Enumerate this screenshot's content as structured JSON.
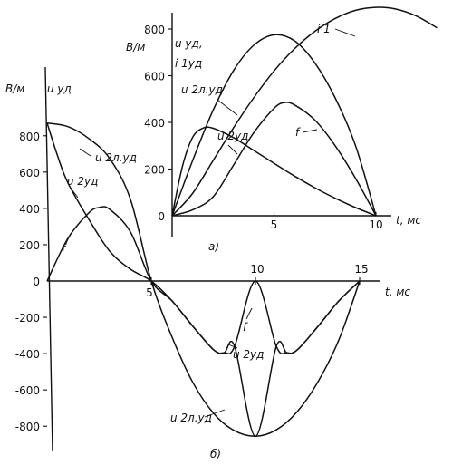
{
  "chart_data": [
    {
      "panel_label": "а)",
      "type": "line",
      "y_unit": "В/м",
      "y_label_lines": [
        "u уд,",
        "i 1уд"
      ],
      "x_label": "t, мс",
      "x_ticks": [
        "5",
        "10"
      ],
      "y_ticks": [
        "0",
        "200",
        "400",
        "600",
        "800"
      ],
      "xlim": [
        0,
        13
      ],
      "ylim": [
        0,
        900
      ],
      "series": [
        {
          "name": "i 1",
          "points": [
            [
              0,
              0
            ],
            [
              1,
              95
            ],
            [
              2,
              235
            ],
            [
              3,
              375
            ],
            [
              4,
              505
            ],
            [
              5,
              620
            ],
            [
              6,
              715
            ],
            [
              7,
              790
            ],
            [
              8,
              845
            ],
            [
              9,
              880
            ],
            [
              10,
              893
            ],
            [
              11,
              885
            ],
            [
              12,
              855
            ],
            [
              13,
              805
            ]
          ]
        },
        {
          "name": "u 2л.уд",
          "points": [
            [
              0,
              0
            ],
            [
              1,
              235
            ],
            [
              2,
              450
            ],
            [
              3,
              620
            ],
            [
              4,
              730
            ],
            [
              5,
              775
            ],
            [
              6,
              750
            ],
            [
              7,
              655
            ],
            [
              8,
              505
            ],
            [
              9,
              300
            ],
            [
              10,
              0
            ]
          ]
        },
        {
          "name": "u 2уд",
          "points": [
            [
              0,
              0
            ],
            [
              0.5,
              210
            ],
            [
              1,
              335
            ],
            [
              1.5,
              375
            ],
            [
              2,
              375
            ],
            [
              3,
              335
            ],
            [
              4,
              280
            ],
            [
              5,
              225
            ],
            [
              6,
              170
            ],
            [
              7,
              120
            ],
            [
              8,
              75
            ],
            [
              9,
              35
            ],
            [
              10,
              0
            ]
          ]
        },
        {
          "name": "f",
          "points": [
            [
              0,
              0
            ],
            [
              1,
              25
            ],
            [
              2,
              80
            ],
            [
              3,
              215
            ],
            [
              4,
              355
            ],
            [
              5,
              460
            ],
            [
              5.5,
              485
            ],
            [
              6,
              475
            ],
            [
              7,
              410
            ],
            [
              8,
              300
            ],
            [
              9,
              160
            ],
            [
              10,
              0
            ]
          ]
        }
      ]
    },
    {
      "panel_label": "б)",
      "type": "line",
      "y_unit": "В/м",
      "y_label_lines": [
        "u уд"
      ],
      "x_label": "t, мс",
      "x_ticks": [
        "5",
        "10",
        "15"
      ],
      "y_ticks": [
        "800",
        "600",
        "400",
        "200",
        "0",
        "-200",
        "-400",
        "-600",
        "-800"
      ],
      "xlim": [
        0,
        17
      ],
      "ylim": [
        -900,
        900
      ],
      "series": [
        {
          "name": "u 2л.уд",
          "points": [
            [
              0,
              870
            ],
            [
              1,
              850
            ],
            [
              2,
              785
            ],
            [
              3,
              675
            ],
            [
              4,
              450
            ],
            [
              5,
              0
            ],
            [
              6,
              -310
            ],
            [
              7,
              -560
            ],
            [
              8,
              -730
            ],
            [
              9,
              -825
            ],
            [
              10,
              -855
            ],
            [
              11,
              -820
            ],
            [
              12,
              -720
            ],
            [
              13,
              -555
            ],
            [
              14,
              -325
            ],
            [
              15,
              0
            ]
          ]
        },
        {
          "name": "u 2уд",
          "points": [
            [
              0,
              870
            ],
            [
              0.5,
              690
            ],
            [
              1,
              540
            ],
            [
              2,
              340
            ],
            [
              3,
              165
            ],
            [
              4,
              65
            ],
            [
              5,
              0
            ],
            [
              6,
              -110
            ],
            [
              7,
              -250
            ],
            [
              8,
              -380
            ],
            [
              8.5,
              -395
            ],
            [
              9,
              -360
            ],
            [
              10,
              -855
            ],
            [
              11,
              -360
            ],
            [
              11.5,
              -395
            ],
            [
              12,
              -380
            ],
            [
              13,
              -250
            ],
            [
              14,
              -110
            ],
            [
              15,
              0
            ]
          ]
        },
        {
          "name": "f",
          "points": [
            [
              0,
              0
            ],
            [
              1,
              235
            ],
            [
              2,
              375
            ],
            [
              2.5,
              405
            ],
            [
              3,
              395
            ],
            [
              4,
              270
            ],
            [
              5,
              0
            ],
            [
              6,
              -110
            ],
            [
              7,
              -250
            ],
            [
              8,
              -380
            ],
            [
              8.5,
              -395
            ],
            [
              9,
              -360
            ],
            [
              10,
              0
            ],
            [
              11,
              -360
            ],
            [
              11.5,
              -395
            ],
            [
              12,
              -380
            ],
            [
              13,
              -250
            ],
            [
              14,
              -110
            ],
            [
              15,
              0
            ]
          ]
        }
      ]
    }
  ]
}
